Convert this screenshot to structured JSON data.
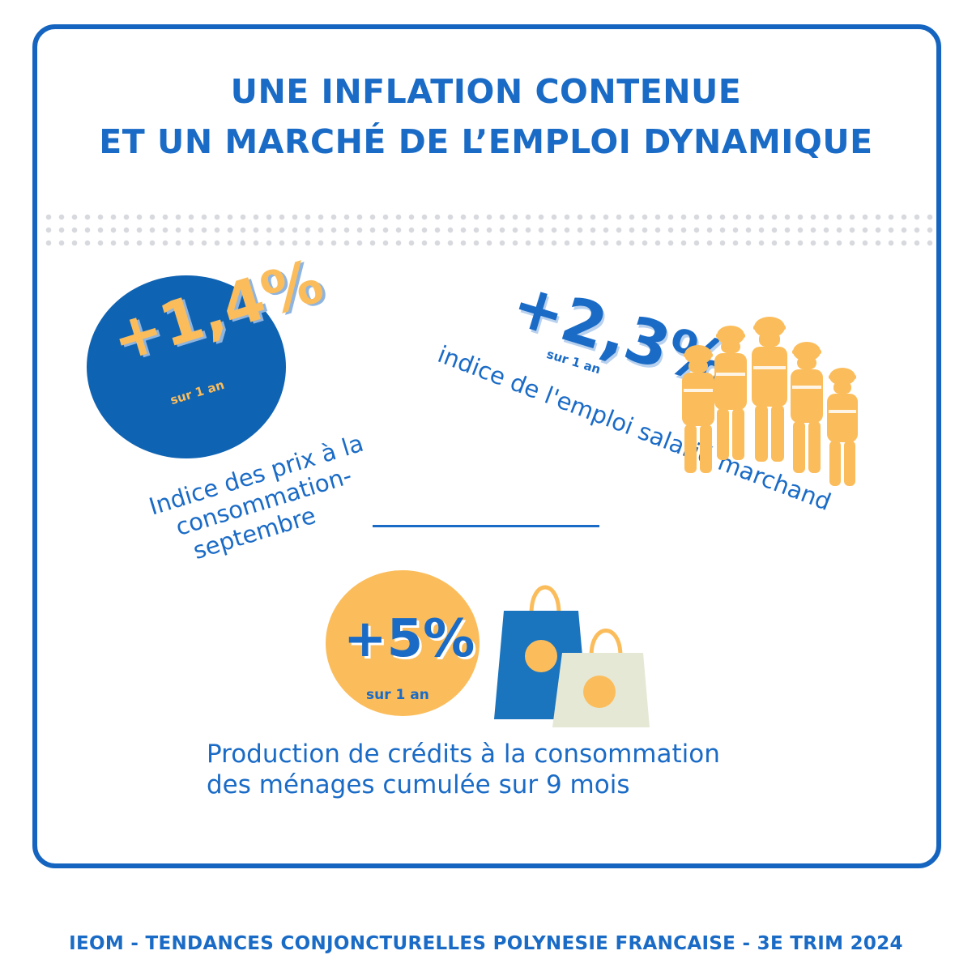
{
  "title": {
    "line1": "UNE INFLATION CONTENUE",
    "line2": "ET UN MARCHÉ DE L’EMPLOI DYNAMIQUE"
  },
  "inflation": {
    "value": "+1,4%",
    "period": "sur 1 an",
    "label_line1": "Indice des prix à la",
    "label_line2": "consommation-",
    "label_line3": "septembre"
  },
  "employment": {
    "value": "+2,3%",
    "period": "sur 1 an",
    "label_line1": "indice de l'emploi salarié marchand",
    "icon": "construction-workers-icon"
  },
  "credit": {
    "value": "+5%",
    "period": "sur 1 an",
    "label_line1": "Production de crédits à la consommation",
    "label_line2": "des ménages cumulée sur 9 mois",
    "icon": "shopping-bags-icon"
  },
  "footer": "IEOM - TENDANCES CONJONCTURELLES POLYNESIE FRANCAISE - 3E TRIM 2024",
  "colors": {
    "primary_blue": "#1a6bc6",
    "frame_blue": "#1565c0",
    "circle_blue": "#0f63b3",
    "accent_yellow": "#fbbd5b",
    "bag_beige": "#e6e8d6"
  }
}
